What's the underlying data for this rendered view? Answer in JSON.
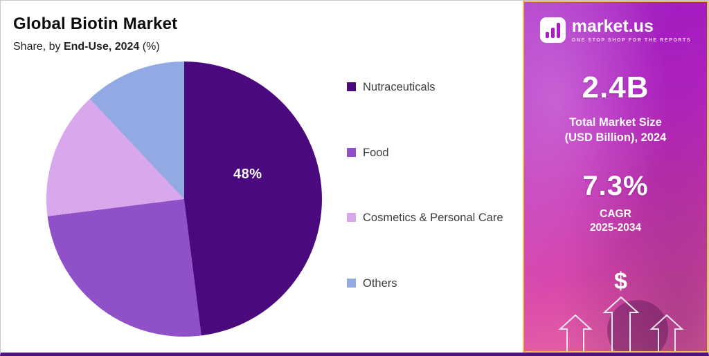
{
  "header": {
    "title": "Global Biotin Market",
    "subtitle_prefix": "Share, by ",
    "subtitle_strong": "End-Use, 2024",
    "subtitle_suffix": " (%)"
  },
  "chart_data": {
    "type": "pie",
    "title": "Global Biotin Market",
    "subtitle": "Share, by End-Use, 2024 (%)",
    "unit": "%",
    "legend_position": "right",
    "pie_label": "48%",
    "slices": [
      {
        "label": "Nutraceuticals",
        "value": 48,
        "color": "#4a0a7d"
      },
      {
        "label": "Food",
        "value": 25,
        "color": "#8f50c8"
      },
      {
        "label": "Cosmetics & Personal Care",
        "value": 15,
        "color": "#d9a8ec"
      },
      {
        "label": "Others",
        "value": 12,
        "color": "#93a9e4"
      }
    ]
  },
  "sidebar": {
    "logo": {
      "text": "market.us",
      "tagline": "ONE STOP SHOP FOR THE REPORTS"
    },
    "market_size": {
      "value": "2.4B",
      "label_line1": "Total Market Size",
      "label_line2": "(USD Billion), 2024"
    },
    "cagr": {
      "value": "7.3%",
      "label_line1": "CAGR",
      "label_line2": "2025-2034"
    },
    "dollar_symbol": "$",
    "colors": {
      "border_gold": "#eebf4a",
      "gradient_top": "#a01ac2",
      "gradient_bottom": "#e765a4"
    }
  }
}
